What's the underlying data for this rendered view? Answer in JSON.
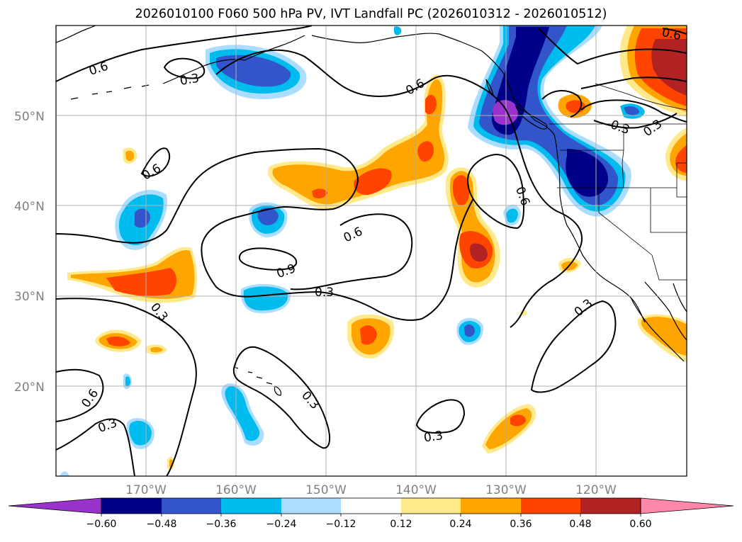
{
  "title": "2026010100 F060 500 hPa PV, IVT Landfall PC (2026010312 - 2026010512)",
  "map": {
    "lon_range": [
      -180,
      -110
    ],
    "lat_range": [
      10,
      60
    ],
    "lat_labels": [
      "50°N",
      "40°N",
      "30°N",
      "20°N"
    ],
    "lon_labels": [
      "170°W",
      "160°W",
      "150°W",
      "140°W",
      "130°W",
      "120°W"
    ]
  },
  "colorbar": {
    "colors": [
      "#9933cc",
      "#000088",
      "#3355cc",
      "#00bbee",
      "#aaddff",
      "#ffffff",
      "#ffe98a",
      "#ffa500",
      "#ff4400",
      "#b22222",
      "#ff88aa"
    ],
    "ticks": [
      "−0.60",
      "−0.48",
      "−0.36",
      "−0.24",
      "−0.12",
      "0.12",
      "0.24",
      "0.36",
      "0.48",
      "0.60"
    ]
  },
  "contour_labels": [
    "0.6",
    "0.3",
    "0.6",
    "0.6",
    "0.3",
    "0.3",
    "0.3",
    "0.6",
    "0.6",
    "0.6",
    "0.9",
    "0.3",
    "0.3",
    "0.3",
    "0.3",
    "0.6",
    "0.3",
    "0.3",
    "0.3"
  ]
}
